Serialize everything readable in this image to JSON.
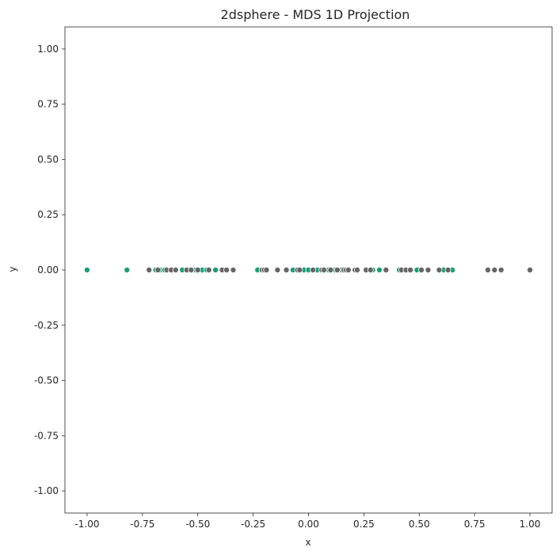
{
  "chart_data": {
    "type": "scatter",
    "title": "2dsphere - MDS 1D Projection",
    "xlabel": "x",
    "ylabel": "y",
    "xlim": [
      -1.1,
      1.1
    ],
    "ylim": [
      -1.1,
      1.1
    ],
    "x_ticks": [
      -1.0,
      -0.75,
      -0.5,
      -0.25,
      0.0,
      0.25,
      0.5,
      0.75,
      1.0
    ],
    "y_ticks": [
      -1.0,
      -0.75,
      -0.5,
      -0.25,
      0.0,
      0.25,
      0.5,
      0.75,
      1.0
    ],
    "x_tick_labels": [
      "-1.00",
      "-0.75",
      "-0.50",
      "-0.25",
      "0.00",
      "0.25",
      "0.50",
      "0.75",
      "1.00"
    ],
    "y_tick_labels": [
      "-1.00",
      "-0.75",
      "-0.50",
      "-0.25",
      "0.00",
      "0.25",
      "0.50",
      "0.75",
      "1.00"
    ],
    "grid": false,
    "legend": "none",
    "colors": {
      "green": "#1b9e77",
      "gray": "#666666",
      "edge": "#ffffff"
    },
    "series": [
      {
        "color": "#1b9e77",
        "x": [
          -1.0,
          -0.82,
          -0.69,
          -0.67,
          -0.65,
          -0.57,
          -0.51,
          -0.48,
          -0.46,
          -0.42,
          -0.23,
          -0.07,
          -0.02,
          0.0,
          0.04,
          0.09,
          0.12,
          0.15,
          0.29,
          0.32,
          0.41,
          0.49,
          0.61,
          0.65
        ],
        "y": [
          0,
          0,
          0,
          0,
          0,
          0,
          0,
          0,
          0,
          0,
          0,
          0,
          0,
          0,
          0,
          0,
          0,
          0,
          0,
          0,
          0,
          0,
          0,
          0
        ]
      },
      {
        "color": "#666666",
        "x": [
          -0.72,
          -0.68,
          -0.64,
          -0.62,
          -0.6,
          -0.55,
          -0.53,
          -0.5,
          -0.45,
          -0.39,
          -0.37,
          -0.34,
          -0.21,
          -0.2,
          -0.19,
          -0.14,
          -0.1,
          -0.05,
          -0.04,
          0.02,
          0.06,
          0.07,
          0.1,
          0.13,
          0.16,
          0.17,
          0.18,
          0.21,
          0.22,
          0.26,
          0.28,
          0.35,
          0.42,
          0.44,
          0.46,
          0.51,
          0.54,
          0.59,
          0.63,
          0.81,
          0.84,
          0.87,
          1.0
        ],
        "y": [
          0,
          0,
          0,
          0,
          0,
          0,
          0,
          0,
          0,
          0,
          0,
          0,
          0,
          0,
          0,
          0,
          0,
          0,
          0,
          0,
          0,
          0,
          0,
          0,
          0,
          0,
          0,
          0,
          0,
          0,
          0,
          0,
          0,
          0,
          0,
          0,
          0,
          0,
          0,
          0,
          0,
          0,
          0
        ]
      }
    ]
  }
}
